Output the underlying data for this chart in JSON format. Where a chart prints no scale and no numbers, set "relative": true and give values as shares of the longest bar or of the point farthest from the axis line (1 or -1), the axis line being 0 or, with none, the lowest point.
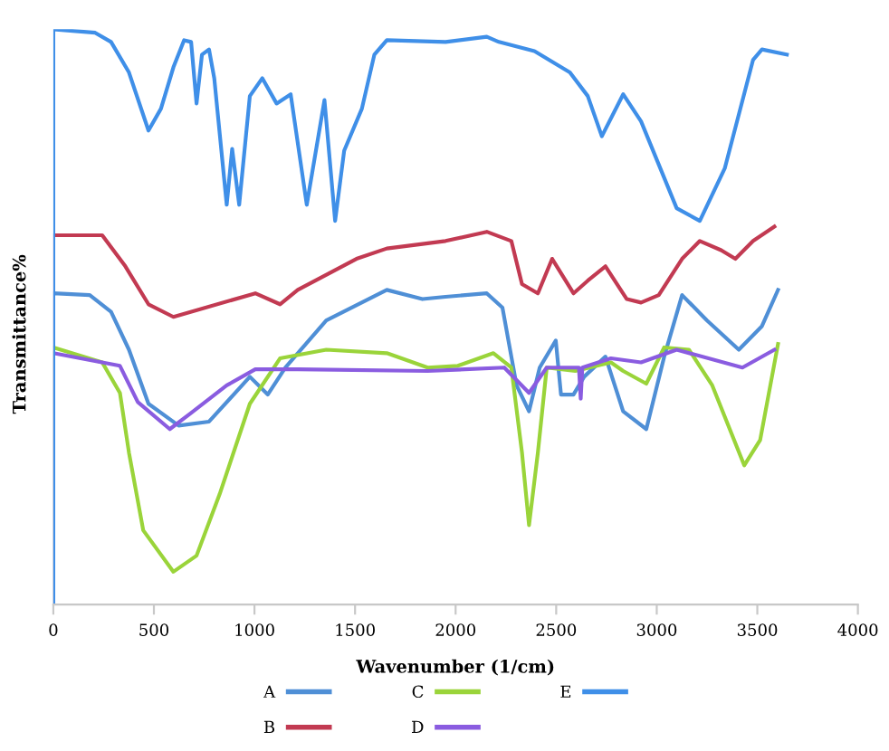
{
  "chart_data": {
    "type": "line",
    "relative": true,
    "xlabel": "Wavenumber (1/cm)",
    "ylabel": "Transmittance%",
    "xlim": [
      0,
      4000
    ],
    "xticks": [
      0,
      500,
      1000,
      1500,
      2000,
      2500,
      3000,
      3500,
      4000
    ],
    "grid": false,
    "legend": "bottom",
    "marker": "none",
    "line_style": "solid",
    "series": [
      {
        "name": "A",
        "color": "#4f8fd6",
        "x": [
          0,
          0,
          181,
          287,
          376,
          473,
          623,
          774,
          977,
          1066,
          1154,
          1357,
          1658,
          1835,
          1950,
          2155,
          2233,
          2303,
          2365,
          2418,
          2498,
          2524,
          2586,
          2639,
          2745,
          2833,
          2948,
          3037,
          3126,
          3249,
          3408,
          3523,
          3603
        ],
        "values": [
          0,
          0.541,
          0.538,
          0.509,
          0.443,
          0.349,
          0.311,
          0.318,
          0.396,
          0.365,
          0.412,
          0.494,
          0.547,
          0.531,
          0.535,
          0.541,
          0.516,
          0.381,
          0.336,
          0.412,
          0.459,
          0.365,
          0.365,
          0.396,
          0.431,
          0.336,
          0.305,
          0.431,
          0.538,
          0.494,
          0.443,
          0.484,
          0.547
        ]
      },
      {
        "name": "B",
        "color": "#c23a52",
        "x": [
          0,
          0,
          243,
          358,
          473,
          597,
          1004,
          1127,
          1215,
          1507,
          1658,
          1950,
          2155,
          2277,
          2330,
          2409,
          2480,
          2586,
          2657,
          2745,
          2851,
          2922,
          3010,
          3126,
          3214,
          3320,
          3391,
          3479,
          3585
        ],
        "values": [
          0,
          0.642,
          0.642,
          0.588,
          0.522,
          0.5,
          0.541,
          0.522,
          0.547,
          0.601,
          0.619,
          0.632,
          0.648,
          0.632,
          0.557,
          0.541,
          0.601,
          0.541,
          0.563,
          0.588,
          0.531,
          0.525,
          0.538,
          0.601,
          0.632,
          0.616,
          0.601,
          0.632,
          0.657
        ]
      },
      {
        "name": "C",
        "color": "#9ad43a",
        "x": [
          0,
          0,
          243,
          331,
          376,
          447,
          597,
          712,
          827,
          977,
          1127,
          1357,
          1658,
          1861,
          2011,
          2188,
          2277,
          2330,
          2365,
          2409,
          2453,
          2595,
          2772,
          2833,
          2948,
          3037,
          3160,
          3276,
          3435,
          3514,
          3603
        ],
        "values": [
          0,
          0.447,
          0.421,
          0.368,
          0.264,
          0.129,
          0.057,
          0.085,
          0.192,
          0.349,
          0.428,
          0.443,
          0.437,
          0.412,
          0.415,
          0.437,
          0.412,
          0.264,
          0.138,
          0.264,
          0.412,
          0.406,
          0.421,
          0.406,
          0.384,
          0.447,
          0.443,
          0.381,
          0.242,
          0.286,
          0.453
        ]
      },
      {
        "name": "D",
        "color": "#8a5ce0",
        "x": [
          0,
          0,
          331,
          420,
          579,
          685,
          862,
          1004,
          1215,
          1861,
          2242,
          2365,
          2453,
          2613,
          2622,
          2630,
          2772,
          2922,
          3099,
          3426,
          3585
        ],
        "values": [
          0,
          0.437,
          0.415,
          0.352,
          0.305,
          0.333,
          0.381,
          0.409,
          0.409,
          0.406,
          0.412,
          0.368,
          0.412,
          0.412,
          0.358,
          0.412,
          0.428,
          0.421,
          0.443,
          0.412,
          0.443
        ]
      },
      {
        "name": "E",
        "color": "#3f8fe8",
        "x": [
          0,
          0,
          208,
          287,
          376,
          473,
          535,
          597,
          650,
          685,
          712,
          739,
          774,
          800,
          862,
          889,
          924,
          977,
          1039,
          1110,
          1180,
          1260,
          1348,
          1401,
          1446,
          1534,
          1596,
          1658,
          1950,
          2155,
          2215,
          2392,
          2568,
          2657,
          2727,
          2833,
          2922,
          3099,
          3214,
          3338,
          3479,
          3523,
          3647
        ],
        "values": [
          0,
          1,
          0.994,
          0.978,
          0.925,
          0.824,
          0.862,
          0.934,
          0.981,
          0.978,
          0.871,
          0.956,
          0.965,
          0.915,
          0.695,
          0.792,
          0.695,
          0.884,
          0.915,
          0.871,
          0.887,
          0.695,
          0.877,
          0.667,
          0.789,
          0.862,
          0.956,
          0.981,
          0.978,
          0.987,
          0.978,
          0.962,
          0.925,
          0.884,
          0.814,
          0.887,
          0.84,
          0.689,
          0.667,
          0.758,
          0.947,
          0.965,
          0.956
        ]
      }
    ]
  }
}
